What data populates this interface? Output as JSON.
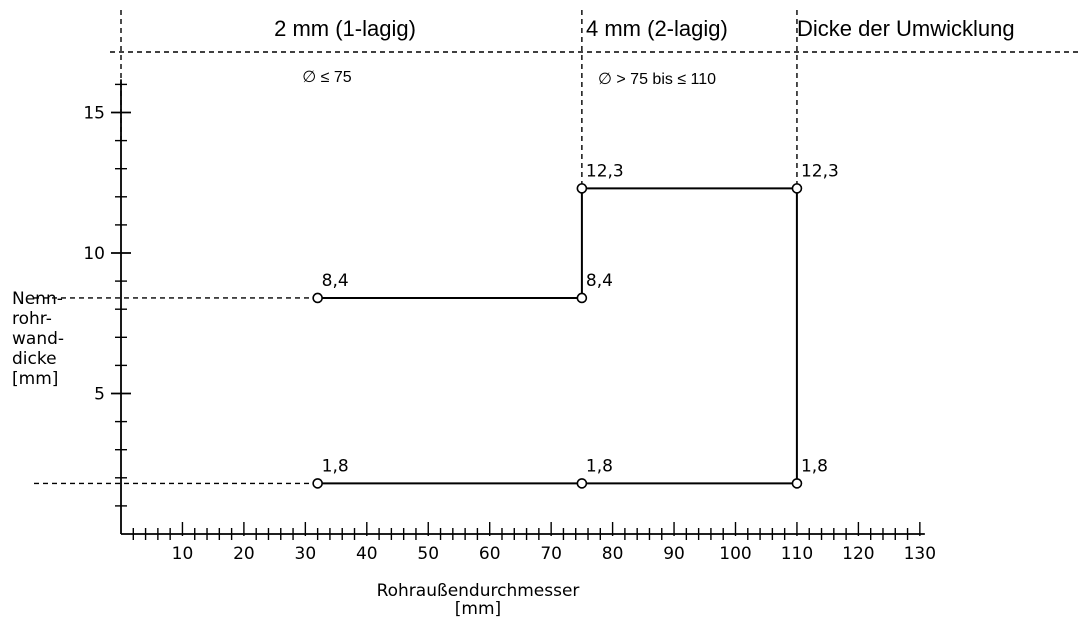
{
  "header": {
    "col1": "2 mm (1-lagig)",
    "col2": "4 mm (2-lagig)",
    "col3": "Dicke der Umwicklung",
    "sub1": "∅ ≤ 75",
    "sub2": "∅ > 75 bis ≤ 110"
  },
  "chart_data": {
    "type": "line",
    "xlabel": [
      "Rohraußendurchmesser",
      "[mm]"
    ],
    "ylabel": [
      "Nenn-",
      "rohr-",
      "wand-",
      "dicke",
      "[mm]"
    ],
    "xlim": [
      0,
      130
    ],
    "ylim": [
      0,
      16
    ],
    "x_ticks": [
      10,
      20,
      30,
      40,
      50,
      60,
      70,
      80,
      90,
      100,
      110,
      120,
      130
    ],
    "y_ticks": [
      5,
      10,
      15
    ],
    "grid": false,
    "zone_boundaries_x": [
      0,
      75,
      110
    ],
    "outline": [
      {
        "x": 32,
        "y": 8.4
      },
      {
        "x": 75,
        "y": 8.4
      },
      {
        "x": 75,
        "y": 12.3
      },
      {
        "x": 110,
        "y": 12.3
      },
      {
        "x": 110,
        "y": 1.8
      },
      {
        "x": 32,
        "y": 1.8
      }
    ],
    "points": [
      {
        "x": 32,
        "y": 8.4,
        "label": "8,4"
      },
      {
        "x": 75,
        "y": 8.4,
        "label": "8,4"
      },
      {
        "x": 75,
        "y": 12.3,
        "label": "12,3"
      },
      {
        "x": 110,
        "y": 12.3,
        "label": "12,3"
      },
      {
        "x": 32,
        "y": 1.8,
        "label": "1,8"
      },
      {
        "x": 75,
        "y": 1.8,
        "label": "1,8"
      },
      {
        "x": 110,
        "y": 1.8,
        "label": "1,8"
      }
    ],
    "reference_levels_y": [
      8.4,
      1.8
    ]
  }
}
